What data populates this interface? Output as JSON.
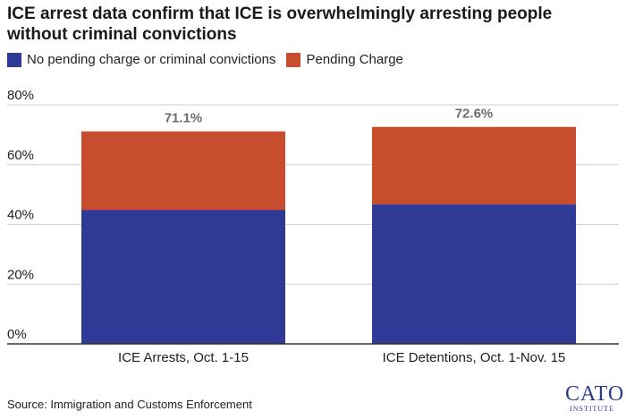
{
  "title": "ICE arrest data confirm that ICE is overwhelmingly arresting people without criminal convictions",
  "source": "Source: Immigration and Customs Enforcement",
  "logo": {
    "main": "CATO",
    "sub": "INSTITUTE"
  },
  "colors": {
    "no_pending": "#2e3a96",
    "pending": "#c84c2e",
    "grid": "#cfcfcf",
    "total_label": "#6b6b6b"
  },
  "chart_data": {
    "type": "bar",
    "stacked": true,
    "categories": [
      "ICE Arrests, Oct. 1-15",
      "ICE Detentions, Oct. 1-Nov. 15"
    ],
    "series": [
      {
        "name": "No pending charge or criminal convictions",
        "values": [
          44.8,
          46.7
        ]
      },
      {
        "name": "Pending Charge",
        "values": [
          26.3,
          25.9
        ]
      }
    ],
    "totals": [
      "71.1%",
      "72.6%"
    ],
    "yticks": [
      "0%",
      "20%",
      "40%",
      "60%",
      "80%"
    ],
    "ytick_values": [
      0,
      20,
      40,
      60,
      80
    ],
    "ylim": [
      0,
      80
    ],
    "grid": true,
    "legend_position": "top-left"
  }
}
